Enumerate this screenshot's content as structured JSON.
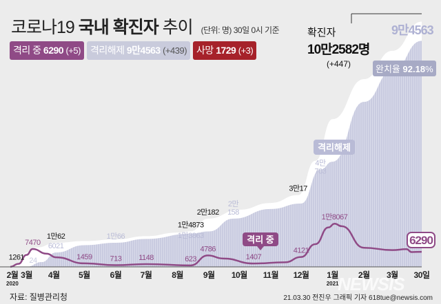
{
  "header": {
    "title_pre": "코로나19",
    "title_bold": "국내 확진자",
    "title_post": "추이",
    "unit": "(단위: 명) 30일 0시 기준"
  },
  "badges": {
    "active": {
      "label": "격리 중",
      "value": "6290",
      "delta": "(+5)"
    },
    "released": {
      "label": "격리해제",
      "value": "9만4563",
      "delta": "(+439)"
    },
    "death": {
      "label": "사망",
      "value": "1729",
      "delta": "(+3)"
    }
  },
  "total": {
    "label": "확진자",
    "value": "10만2582명",
    "delta": "(+447)"
  },
  "released_total": "9만4563",
  "recovery_rate": {
    "label": "완치율",
    "value": "92.18",
    "unit": "%"
  },
  "source": "자료: 질병관리청",
  "credit": "21.03.30 전진우 그래픽 기자 618tue@newsis.com",
  "watermark": "NEWSIS",
  "colors": {
    "active": "#8f4a86",
    "released": "#c9cbe0",
    "confirmed": "#ffffff",
    "death": "#a6222a"
  },
  "chart_data": {
    "type": "area",
    "x_range": [
      "2020-02-18",
      "2021-03-30"
    ],
    "ylim": [
      0,
      103000
    ],
    "x_ticks": [
      {
        "date": "2020-02-20",
        "label": "2월",
        "sub": "2020"
      },
      {
        "date": "2020-03-05",
        "label": "3월"
      },
      {
        "date": "2020-04-01",
        "label": "4월"
      },
      {
        "date": "2020-05-01",
        "label": "5월"
      },
      {
        "date": "2020-06-01",
        "label": "6월"
      },
      {
        "date": "2020-07-01",
        "label": "7월"
      },
      {
        "date": "2020-08-01",
        "label": "8월"
      },
      {
        "date": "2020-09-01",
        "label": "9월"
      },
      {
        "date": "2020-10-01",
        "label": "10월"
      },
      {
        "date": "2020-11-01",
        "label": "11월"
      },
      {
        "date": "2020-12-01",
        "label": "12월"
      },
      {
        "date": "2021-01-01",
        "label": "1월",
        "sub": "2021"
      },
      {
        "date": "2021-02-01",
        "label": "2월"
      },
      {
        "date": "2021-03-01",
        "label": "3월"
      },
      {
        "date": "2021-03-30",
        "label": "30일"
      }
    ],
    "series": [
      {
        "name": "확진자",
        "points": [
          [
            "2020-02-18",
            31
          ],
          [
            "2020-02-26",
            1261
          ],
          [
            "2020-03-05",
            6000
          ],
          [
            "2020-03-15",
            8100
          ],
          [
            "2020-04-03",
            10062
          ],
          [
            "2020-05-01",
            10774
          ],
          [
            "2020-06-01",
            11503
          ],
          [
            "2020-07-01",
            12850
          ],
          [
            "2020-08-01",
            14336
          ],
          [
            "2020-08-14",
            14873
          ],
          [
            "2020-08-31",
            20182
          ],
          [
            "2020-10-01",
            23889
          ],
          [
            "2020-11-01",
            26732
          ],
          [
            "2020-11-28",
            30017
          ],
          [
            "2020-12-15",
            44364
          ],
          [
            "2021-01-01",
            61769
          ],
          [
            "2021-02-01",
            78508
          ],
          [
            "2021-03-01",
            90372
          ],
          [
            "2021-03-30",
            102582
          ]
        ]
      },
      {
        "name": "격리해제",
        "points": [
          [
            "2020-02-18",
            0
          ],
          [
            "2020-03-05",
            24
          ],
          [
            "2020-03-20",
            2000
          ],
          [
            "2020-04-03",
            6021
          ],
          [
            "2020-05-01",
            9072
          ],
          [
            "2020-06-01",
            10066
          ],
          [
            "2020-07-01",
            11684
          ],
          [
            "2020-08-14",
            13863
          ],
          [
            "2020-09-01",
            14800
          ],
          [
            "2020-09-25",
            20158
          ],
          [
            "2020-11-01",
            24200
          ],
          [
            "2020-12-01",
            26500
          ],
          [
            "2020-12-20",
            40703
          ],
          [
            "2021-01-01",
            44000
          ],
          [
            "2021-02-01",
            69000
          ],
          [
            "2021-03-01",
            82000
          ],
          [
            "2021-03-30",
            94563
          ]
        ]
      },
      {
        "name": "격리 중",
        "points": [
          [
            "2020-02-18",
            30
          ],
          [
            "2020-02-26",
            1261
          ],
          [
            "2020-03-05",
            5000
          ],
          [
            "2020-03-11",
            7470
          ],
          [
            "2020-03-25",
            5500
          ],
          [
            "2020-04-03",
            4000
          ],
          [
            "2020-05-01",
            1459
          ],
          [
            "2020-06-01",
            713
          ],
          [
            "2020-07-01",
            1148
          ],
          [
            "2020-08-14",
            623
          ],
          [
            "2020-08-31",
            4786
          ],
          [
            "2020-09-15",
            3500
          ],
          [
            "2020-10-15",
            1407
          ],
          [
            "2020-11-15",
            1900
          ],
          [
            "2020-12-01",
            4121
          ],
          [
            "2020-12-15",
            9500
          ],
          [
            "2020-12-28",
            16500
          ],
          [
            "2021-01-03",
            18067
          ],
          [
            "2021-01-10",
            17000
          ],
          [
            "2021-02-01",
            8000
          ],
          [
            "2021-03-01",
            7000
          ],
          [
            "2021-03-15",
            7400
          ],
          [
            "2021-03-20",
            6200
          ],
          [
            "2021-03-30",
            6290
          ]
        ]
      }
    ],
    "annotations": [
      {
        "text": [
          "1261"
        ],
        "date": "2020-02-24",
        "value": 1261,
        "color": "#111"
      },
      {
        "text": [
          "7470"
        ],
        "date": "2020-03-11",
        "value": 7470,
        "color": "#8f4a86"
      },
      {
        "text": [
          "24"
        ],
        "date": "2020-03-06",
        "value": 24,
        "color": "#c9cbe0"
      },
      {
        "text": [
          "1만62"
        ],
        "date": "2020-04-03",
        "value": 10062,
        "color": "#111"
      },
      {
        "text": [
          "6021"
        ],
        "date": "2020-04-03",
        "value": 6021,
        "color": "#b9bbd6"
      },
      {
        "text": [
          "1459"
        ],
        "date": "2020-05-01",
        "value": 1459,
        "color": "#8f4a86"
      },
      {
        "text": [
          "1만66"
        ],
        "date": "2020-06-01",
        "value": 10066,
        "color": "#b9bbd6"
      },
      {
        "text": [
          "713"
        ],
        "date": "2020-06-01",
        "value": 713,
        "color": "#8f4a86"
      },
      {
        "text": [
          "1148"
        ],
        "date": "2020-07-01",
        "value": 1148,
        "color": "#8f4a86"
      },
      {
        "text": [
          "1만4873"
        ],
        "date": "2020-08-14",
        "value": 14873,
        "color": "#111"
      },
      {
        "text": [
          "1만3863"
        ],
        "date": "2020-08-14",
        "value": 13863,
        "color": "#b9bbd6"
      },
      {
        "text": [
          "623"
        ],
        "date": "2020-08-14",
        "value": 623,
        "color": "#8f4a86"
      },
      {
        "text": [
          "2만182"
        ],
        "date": "2020-08-31",
        "value": 20182,
        "color": "#111"
      },
      {
        "text": [
          "4786"
        ],
        "date": "2020-08-31",
        "value": 4786,
        "color": "#8f4a86"
      },
      {
        "text": [
          "2만",
          "158"
        ],
        "date": "2020-09-25",
        "value": 20158,
        "color": "#b9bbd6"
      },
      {
        "text": [
          "1407"
        ],
        "date": "2020-10-15",
        "value": 1407,
        "color": "#8f4a86"
      },
      {
        "text": [
          "3만17"
        ],
        "date": "2020-11-28",
        "value": 30017,
        "color": "#111"
      },
      {
        "text": [
          "4121"
        ],
        "date": "2020-12-01",
        "value": 4121,
        "color": "#8f4a86"
      },
      {
        "text": [
          "4만",
          "703"
        ],
        "date": "2020-12-20",
        "value": 40703,
        "color": "#b9bbd6"
      },
      {
        "text": [
          "1만8067"
        ],
        "date": "2021-01-03",
        "value": 18067,
        "color": "#8f4a86"
      }
    ],
    "callouts": {
      "released": "격리해제",
      "active": "격리 중",
      "active_end": "6290"
    }
  }
}
